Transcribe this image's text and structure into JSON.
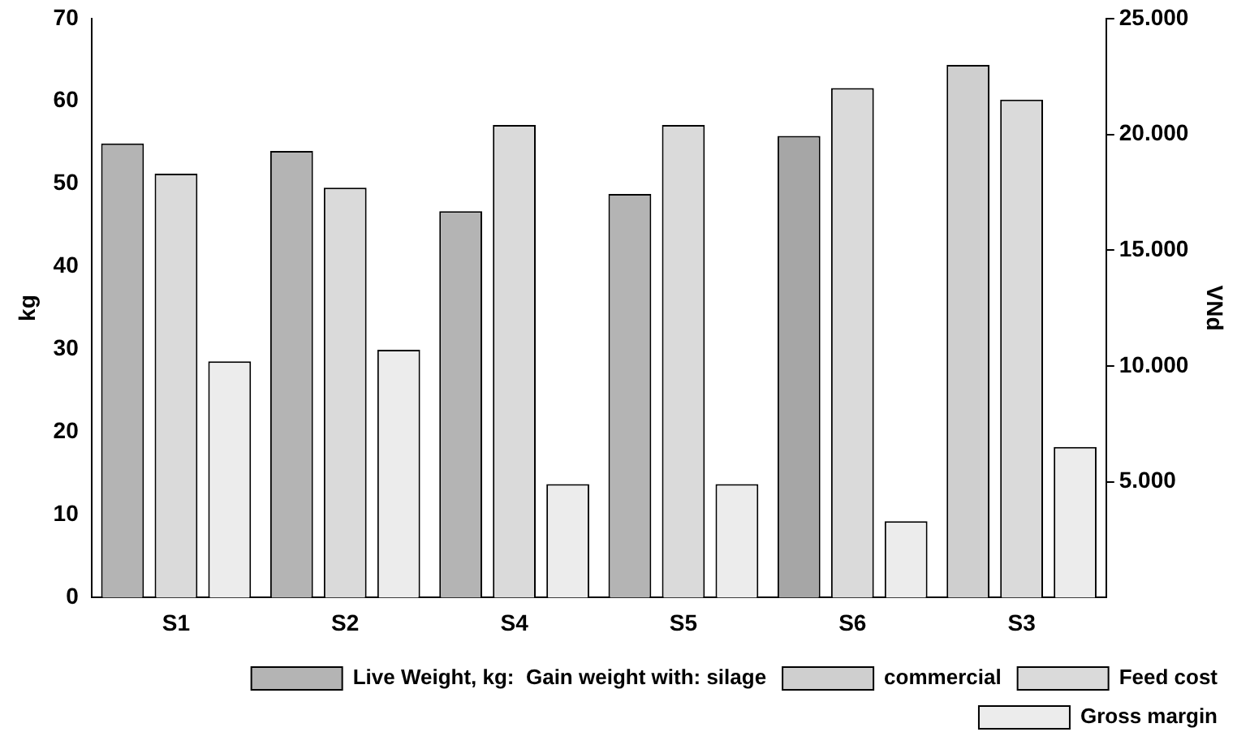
{
  "chart_data": {
    "type": "bar",
    "categories": [
      "S1",
      "S2",
      "S4",
      "S5",
      "S6",
      "S3"
    ],
    "ylabel": "kg",
    "y2label": "VNd",
    "ylim": [
      0,
      70
    ],
    "yticks": [
      0,
      10,
      20,
      30,
      40,
      50,
      60,
      70
    ],
    "y2lim": [
      0,
      25000
    ],
    "y2ticks": [
      {
        "value": 5000,
        "label": "5.000"
      },
      {
        "value": 10000,
        "label": "10.000"
      },
      {
        "value": 15000,
        "label": "15.000"
      },
      {
        "value": 20000,
        "label": "20.000"
      },
      {
        "value": 25000,
        "label": "25.000"
      }
    ],
    "series": [
      {
        "name": "Live Weight, kg:  Gain weight with: silage",
        "color": "#b4b4b4",
        "values": [
          54.9,
          54.0,
          46.7,
          48.8,
          null,
          null
        ]
      },
      {
        "name": "commercial",
        "color": "#cfcfcf",
        "values": [
          null,
          null,
          null,
          null,
          null,
          64.4
        ]
      },
      {
        "color": "#a6a6a6",
        "values": [
          null,
          null,
          null,
          null,
          55.8,
          null
        ]
      },
      {
        "name": "Feed cost",
        "color": "#dadada",
        "axis": "y2",
        "values": [
          18300,
          17700,
          20400,
          20400,
          22000,
          21500
        ]
      },
      {
        "name": "Gross margin",
        "color": "#ececec",
        "axis": "y2",
        "values": [
          10200,
          10700,
          4900,
          4900,
          3300,
          6500
        ]
      }
    ],
    "grid": false,
    "legend": "bottom"
  }
}
